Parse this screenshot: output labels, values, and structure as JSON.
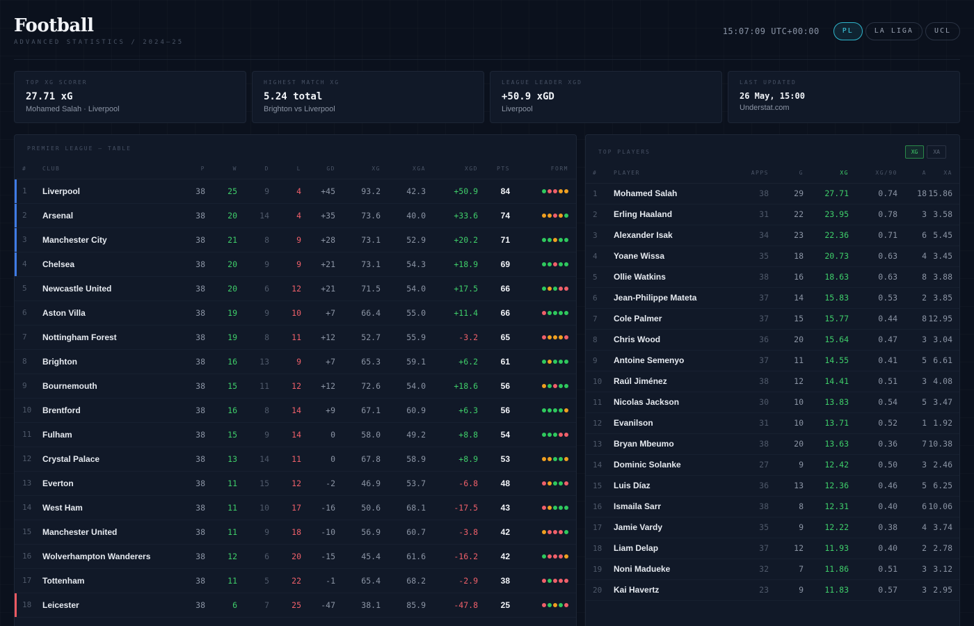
{
  "header": {
    "title": "Football",
    "subtitle": "ADVANCED STATISTICS / 2024–25",
    "clock": "15:07:09 UTC+00:00",
    "leagues": [
      {
        "label": "PL",
        "active": true
      },
      {
        "label": "LA LIGA",
        "active": false
      },
      {
        "label": "UCL",
        "active": false
      }
    ]
  },
  "cards": [
    {
      "label": "TOP XG SCORER",
      "value": "27.71 xG",
      "detail": "Mohamed Salah · Liverpool"
    },
    {
      "label": "HIGHEST MATCH XG",
      "value": "5.24 total",
      "detail": "Brighton vs Liverpool"
    },
    {
      "label": "LEAGUE LEADER XGD",
      "value": "+50.9 xGD",
      "detail": "Liverpool"
    },
    {
      "label": "LAST UPDATED",
      "value": "26 May, 15:00",
      "detail": "Understat.com"
    }
  ],
  "league": {
    "title": "PREMIER LEAGUE — TABLE",
    "columns": [
      "#",
      "CLUB",
      "P",
      "W",
      "D",
      "L",
      "GD",
      "XG",
      "XGA",
      "XGD",
      "PTS",
      "FORM"
    ],
    "rows": [
      {
        "pos": "1",
        "club": "Liverpool",
        "p": "38",
        "w": "25",
        "d": "9",
        "l": "4",
        "gd": "+45",
        "xg": "93.2",
        "xga": "42.3",
        "xgd": "+50.9",
        "pts": "84",
        "form": "WLLDD",
        "zone": "ucl"
      },
      {
        "pos": "2",
        "club": "Arsenal",
        "p": "38",
        "w": "20",
        "d": "14",
        "l": "4",
        "gd": "+35",
        "xg": "73.6",
        "xga": "40.0",
        "xgd": "+33.6",
        "pts": "74",
        "form": "DDLDW",
        "zone": "ucl"
      },
      {
        "pos": "3",
        "club": "Manchester City",
        "p": "38",
        "w": "21",
        "d": "8",
        "l": "9",
        "gd": "+28",
        "xg": "73.1",
        "xga": "52.9",
        "xgd": "+20.2",
        "pts": "71",
        "form": "WWDWW",
        "zone": "ucl"
      },
      {
        "pos": "4",
        "club": "Chelsea",
        "p": "38",
        "w": "20",
        "d": "9",
        "l": "9",
        "gd": "+21",
        "xg": "73.1",
        "xga": "54.3",
        "xgd": "+18.9",
        "pts": "69",
        "form": "WWLWW",
        "zone": "ucl"
      },
      {
        "pos": "5",
        "club": "Newcastle United",
        "p": "38",
        "w": "20",
        "d": "6",
        "l": "12",
        "gd": "+21",
        "xg": "71.5",
        "xga": "54.0",
        "xgd": "+17.5",
        "pts": "66",
        "form": "WDWLL",
        "zone": ""
      },
      {
        "pos": "6",
        "club": "Aston Villa",
        "p": "38",
        "w": "19",
        "d": "9",
        "l": "10",
        "gd": "+7",
        "xg": "66.4",
        "xga": "55.0",
        "xgd": "+11.4",
        "pts": "66",
        "form": "LWWWW",
        "zone": ""
      },
      {
        "pos": "7",
        "club": "Nottingham Forest",
        "p": "38",
        "w": "19",
        "d": "8",
        "l": "11",
        "gd": "+12",
        "xg": "52.7",
        "xga": "55.9",
        "xgd": "-3.2",
        "pts": "65",
        "form": "LDDDL",
        "zone": ""
      },
      {
        "pos": "8",
        "club": "Brighton",
        "p": "38",
        "w": "16",
        "d": "13",
        "l": "9",
        "gd": "+7",
        "xg": "65.3",
        "xga": "59.1",
        "xgd": "+6.2",
        "pts": "61",
        "form": "WDWWW",
        "zone": ""
      },
      {
        "pos": "9",
        "club": "Bournemouth",
        "p": "38",
        "w": "15",
        "d": "11",
        "l": "12",
        "gd": "+12",
        "xg": "72.6",
        "xga": "54.0",
        "xgd": "+18.6",
        "pts": "56",
        "form": "DWLWW",
        "zone": ""
      },
      {
        "pos": "10",
        "club": "Brentford",
        "p": "38",
        "w": "16",
        "d": "8",
        "l": "14",
        "gd": "+9",
        "xg": "67.1",
        "xga": "60.9",
        "xgd": "+6.3",
        "pts": "56",
        "form": "WWWWD",
        "zone": ""
      },
      {
        "pos": "11",
        "club": "Fulham",
        "p": "38",
        "w": "15",
        "d": "9",
        "l": "14",
        "gd": "0",
        "xg": "58.0",
        "xga": "49.2",
        "xgd": "+8.8",
        "pts": "54",
        "form": "WWWLL",
        "zone": ""
      },
      {
        "pos": "12",
        "club": "Crystal Palace",
        "p": "38",
        "w": "13",
        "d": "14",
        "l": "11",
        "gd": "0",
        "xg": "67.8",
        "xga": "58.9",
        "xgd": "+8.9",
        "pts": "53",
        "form": "DDWWD",
        "zone": ""
      },
      {
        "pos": "13",
        "club": "Everton",
        "p": "38",
        "w": "11",
        "d": "15",
        "l": "12",
        "gd": "-2",
        "xg": "46.9",
        "xga": "53.7",
        "xgd": "-6.8",
        "pts": "48",
        "form": "LDWWL",
        "zone": ""
      },
      {
        "pos": "14",
        "club": "West Ham",
        "p": "38",
        "w": "11",
        "d": "10",
        "l": "17",
        "gd": "-16",
        "xg": "50.6",
        "xga": "68.1",
        "xgd": "-17.5",
        "pts": "43",
        "form": "LDWWW",
        "zone": ""
      },
      {
        "pos": "15",
        "club": "Manchester United",
        "p": "38",
        "w": "11",
        "d": "9",
        "l": "18",
        "gd": "-10",
        "xg": "56.9",
        "xga": "60.7",
        "xgd": "-3.8",
        "pts": "42",
        "form": "DLLLW",
        "zone": ""
      },
      {
        "pos": "16",
        "club": "Wolverhampton Wanderers",
        "p": "38",
        "w": "12",
        "d": "6",
        "l": "20",
        "gd": "-15",
        "xg": "45.4",
        "xga": "61.6",
        "xgd": "-16.2",
        "pts": "42",
        "form": "WLLLD",
        "zone": ""
      },
      {
        "pos": "17",
        "club": "Tottenham",
        "p": "38",
        "w": "11",
        "d": "5",
        "l": "22",
        "gd": "-1",
        "xg": "65.4",
        "xga": "68.2",
        "xgd": "-2.9",
        "pts": "38",
        "form": "LWLLL",
        "zone": ""
      },
      {
        "pos": "18",
        "club": "Leicester",
        "p": "38",
        "w": "6",
        "d": "7",
        "l": "25",
        "gd": "-47",
        "xg": "38.1",
        "xga": "85.9",
        "xgd": "-47.8",
        "pts": "25",
        "form": "LWDWL",
        "zone": "rel"
      }
    ]
  },
  "players": {
    "title": "TOP PLAYERS",
    "toggles": [
      {
        "label": "XG",
        "active": true
      },
      {
        "label": "XA",
        "active": false
      }
    ],
    "columns": [
      "#",
      "PLAYER",
      "APPS",
      "G",
      "XG",
      "XG/90",
      "A",
      "XA"
    ],
    "rows": [
      {
        "rank": "1",
        "name": "Mohamed Salah",
        "apps": "38",
        "g": "29",
        "xg": "27.71",
        "xg90": "0.74",
        "a": "18",
        "xa": "15.86"
      },
      {
        "rank": "2",
        "name": "Erling Haaland",
        "apps": "31",
        "g": "22",
        "xg": "23.95",
        "xg90": "0.78",
        "a": "3",
        "xa": "3.58"
      },
      {
        "rank": "3",
        "name": "Alexander Isak",
        "apps": "34",
        "g": "23",
        "xg": "22.36",
        "xg90": "0.71",
        "a": "6",
        "xa": "5.45"
      },
      {
        "rank": "4",
        "name": "Yoane Wissa",
        "apps": "35",
        "g": "18",
        "xg": "20.73",
        "xg90": "0.63",
        "a": "4",
        "xa": "3.45"
      },
      {
        "rank": "5",
        "name": "Ollie Watkins",
        "apps": "38",
        "g": "16",
        "xg": "18.63",
        "xg90": "0.63",
        "a": "8",
        "xa": "3.88"
      },
      {
        "rank": "6",
        "name": "Jean-Philippe Mateta",
        "apps": "37",
        "g": "14",
        "xg": "15.83",
        "xg90": "0.53",
        "a": "2",
        "xa": "3.85"
      },
      {
        "rank": "7",
        "name": "Cole Palmer",
        "apps": "37",
        "g": "15",
        "xg": "15.77",
        "xg90": "0.44",
        "a": "8",
        "xa": "12.95"
      },
      {
        "rank": "8",
        "name": "Chris Wood",
        "apps": "36",
        "g": "20",
        "xg": "15.64",
        "xg90": "0.47",
        "a": "3",
        "xa": "3.04"
      },
      {
        "rank": "9",
        "name": "Antoine Semenyo",
        "apps": "37",
        "g": "11",
        "xg": "14.55",
        "xg90": "0.41",
        "a": "5",
        "xa": "6.61"
      },
      {
        "rank": "10",
        "name": "Raúl Jiménez",
        "apps": "38",
        "g": "12",
        "xg": "14.41",
        "xg90": "0.51",
        "a": "3",
        "xa": "4.08"
      },
      {
        "rank": "11",
        "name": "Nicolas Jackson",
        "apps": "30",
        "g": "10",
        "xg": "13.83",
        "xg90": "0.54",
        "a": "5",
        "xa": "3.47"
      },
      {
        "rank": "12",
        "name": "Evanilson",
        "apps": "31",
        "g": "10",
        "xg": "13.71",
        "xg90": "0.52",
        "a": "1",
        "xa": "1.92"
      },
      {
        "rank": "13",
        "name": "Bryan Mbeumo",
        "apps": "38",
        "g": "20",
        "xg": "13.63",
        "xg90": "0.36",
        "a": "7",
        "xa": "10.38"
      },
      {
        "rank": "14",
        "name": "Dominic Solanke",
        "apps": "27",
        "g": "9",
        "xg": "12.42",
        "xg90": "0.50",
        "a": "3",
        "xa": "2.46"
      },
      {
        "rank": "15",
        "name": "Luis Díaz",
        "apps": "36",
        "g": "13",
        "xg": "12.36",
        "xg90": "0.46",
        "a": "5",
        "xa": "6.25"
      },
      {
        "rank": "16",
        "name": "Ismaila Sarr",
        "apps": "38",
        "g": "8",
        "xg": "12.31",
        "xg90": "0.40",
        "a": "6",
        "xa": "10.06"
      },
      {
        "rank": "17",
        "name": "Jamie Vardy",
        "apps": "35",
        "g": "9",
        "xg": "12.22",
        "xg90": "0.38",
        "a": "4",
        "xa": "3.74"
      },
      {
        "rank": "18",
        "name": "Liam Delap",
        "apps": "37",
        "g": "12",
        "xg": "11.93",
        "xg90": "0.40",
        "a": "2",
        "xa": "2.78"
      },
      {
        "rank": "19",
        "name": "Noni Madueke",
        "apps": "32",
        "g": "7",
        "xg": "11.86",
        "xg90": "0.51",
        "a": "3",
        "xa": "3.12"
      },
      {
        "rank": "20",
        "name": "Kai Havertz",
        "apps": "23",
        "g": "9",
        "xg": "11.83",
        "xg90": "0.57",
        "a": "3",
        "xa": "2.95"
      }
    ]
  }
}
